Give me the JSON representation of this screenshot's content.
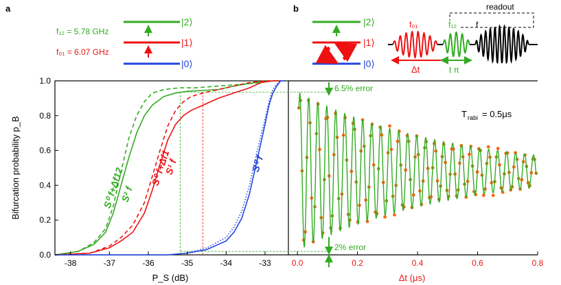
{
  "panels": {
    "a": "a",
    "b": "b"
  },
  "levels": {
    "ket2": "|2⟩",
    "ket1": "|1⟩",
    "ket0": "|0⟩"
  },
  "freqs": {
    "f12": "f₁₂ = 5.78 GHz",
    "f01": "f₀₁ = 6.07 GHz"
  },
  "pulse": {
    "readout": "readout",
    "f01": "f₀₁",
    "f12": "f₁₂",
    "f": "f",
    "dt": "Δt",
    "tpi": "t π"
  },
  "colors": {
    "green": "#33aa22",
    "red": "#ee1111",
    "blue": "#2244dd",
    "orange": "#ff6611"
  },
  "chart_data": [
    {
      "type": "line",
      "xlabel": "P_S (dB)",
      "ylabel": "Bifurcation probability p_B",
      "xlim": [
        -38.4,
        -32.4
      ],
      "ylim": [
        0,
        1
      ],
      "xticks": [
        "-38",
        "-37",
        "-36",
        "-35",
        "-34",
        "-33"
      ],
      "xtick_values": [
        -38,
        -37,
        -36,
        -35,
        -34,
        -33
      ],
      "yticks": [
        "0.0",
        "0.2",
        "0.4",
        "0.6",
        "0.8",
        "1.0"
      ],
      "ytick_values": [
        0,
        0.2,
        0.4,
        0.6,
        0.8,
        1.0
      ],
      "series": [
        {
          "name": "S⁰_{f+Δf12}",
          "color": "green",
          "dash": true,
          "x": [
            -38.4,
            -37.8,
            -37.4,
            -37.1,
            -36.9,
            -36.7,
            -36.5,
            -36.3,
            -36.1,
            -35.9,
            -35.6,
            -35.2,
            -34.8,
            -34.2,
            -33.6,
            -33.1,
            -32.8,
            -32.6
          ],
          "y": [
            0.0,
            0.02,
            0.07,
            0.15,
            0.28,
            0.48,
            0.67,
            0.8,
            0.88,
            0.93,
            0.95,
            0.96,
            0.96,
            0.97,
            0.98,
            0.99,
            1.0,
            1.0
          ]
        },
        {
          "name": "S²_f",
          "color": "green",
          "dash": false,
          "x": [
            -38.4,
            -37.8,
            -37.4,
            -37.1,
            -36.9,
            -36.7,
            -36.5,
            -36.3,
            -36.1,
            -35.9,
            -35.6,
            -35.3,
            -35.0,
            -34.6,
            -34.2,
            -33.8,
            -33.4,
            -33.1,
            -32.8,
            -32.6
          ],
          "y": [
            0.0,
            0.02,
            0.06,
            0.13,
            0.24,
            0.4,
            0.56,
            0.7,
            0.8,
            0.86,
            0.91,
            0.93,
            0.94,
            0.945,
            0.95,
            0.97,
            0.985,
            0.995,
            1.0,
            1.0
          ]
        },
        {
          "name": "S⁰_{f+Δf1}",
          "color": "red",
          "dash": true,
          "x": [
            -38.4,
            -37.5,
            -37.0,
            -36.7,
            -36.4,
            -36.1,
            -35.9,
            -35.7,
            -35.5,
            -35.3,
            -35.1,
            -34.9,
            -34.6,
            -34.2,
            -33.8,
            -33.4,
            -33.0,
            -32.7
          ],
          "y": [
            0.0,
            0.01,
            0.05,
            0.1,
            0.17,
            0.3,
            0.45,
            0.6,
            0.74,
            0.83,
            0.88,
            0.91,
            0.93,
            0.95,
            0.97,
            0.99,
            1.0,
            1.0
          ]
        },
        {
          "name": "S¹_f",
          "color": "red",
          "dash": false,
          "x": [
            -38.4,
            -37.5,
            -37.0,
            -36.7,
            -36.4,
            -36.1,
            -35.9,
            -35.7,
            -35.5,
            -35.3,
            -35.1,
            -34.9,
            -34.6,
            -34.2,
            -33.8,
            -33.4,
            -33.1,
            -32.8,
            -32.6
          ],
          "y": [
            0.0,
            0.01,
            0.04,
            0.08,
            0.13,
            0.24,
            0.37,
            0.52,
            0.66,
            0.75,
            0.8,
            0.83,
            0.86,
            0.9,
            0.93,
            0.96,
            0.99,
            1.0,
            1.0
          ]
        },
        {
          "name": "S⁰_f (dotted)",
          "color": "blue",
          "dash": "dot",
          "x": [
            -38.4,
            -35.5,
            -35.0,
            -34.5,
            -34.0,
            -33.8,
            -33.6,
            -33.4,
            -33.2,
            -33.0,
            -32.9,
            -32.8,
            -32.7,
            -32.6,
            -32.5
          ],
          "y": [
            0.0,
            0.0,
            0.01,
            0.04,
            0.1,
            0.16,
            0.25,
            0.4,
            0.6,
            0.78,
            0.88,
            0.95,
            0.98,
            1.0,
            1.0
          ]
        },
        {
          "name": "S⁰_f",
          "color": "blue",
          "dash": false,
          "x": [
            -38.4,
            -35.5,
            -35.0,
            -34.5,
            -34.0,
            -33.8,
            -33.6,
            -33.4,
            -33.2,
            -33.0,
            -32.9,
            -32.8,
            -32.7,
            -32.6,
            -32.5
          ],
          "y": [
            0.0,
            0.0,
            0.01,
            0.03,
            0.08,
            0.13,
            0.21,
            0.35,
            0.55,
            0.75,
            0.86,
            0.93,
            0.97,
            1.0,
            1.0
          ]
        }
      ],
      "curve_labels": [
        {
          "label": "S⁰",
          "sub": "f+Δf12",
          "color": "green"
        },
        {
          "label": "S²",
          "sub": "f",
          "color": "green"
        },
        {
          "label": "S⁰",
          "sub": "f+Δf1",
          "color": "red"
        },
        {
          "label": "S¹",
          "sub": "f",
          "color": "red"
        },
        {
          "label": "S⁰",
          "sub": "f",
          "color": "blue"
        }
      ],
      "reference_lines": [
        {
          "orientation": "vertical",
          "x": -35.18,
          "color": "green"
        },
        {
          "orientation": "vertical",
          "x": -34.6,
          "color": "red"
        },
        {
          "orientation": "horizontal",
          "y": 0.935,
          "color": "green"
        },
        {
          "orientation": "horizontal",
          "y": 0.02,
          "color": "green"
        }
      ]
    },
    {
      "type": "scatter",
      "xlabel": "Δt (μs)",
      "xlim": [
        -0.03,
        0.8
      ],
      "ylim": [
        0,
        1
      ],
      "xticks": [
        "0.0",
        "0.2",
        "0.4",
        "0.6",
        "0.8"
      ],
      "xtick_values": [
        0,
        0.2,
        0.4,
        0.6,
        0.8
      ],
      "annotations": {
        "top_error": "6.5% error",
        "bottom_error": "2% error",
        "trabi": "T",
        "trabi_sub": "rabi",
        "trabi_value": "= 0.5μs"
      },
      "model": {
        "frequency_mhz": 33.4,
        "decay_time_us": 0.5,
        "center": 0.48,
        "amplitude": 0.455,
        "phase_offset_us": 0.008
      }
    }
  ]
}
